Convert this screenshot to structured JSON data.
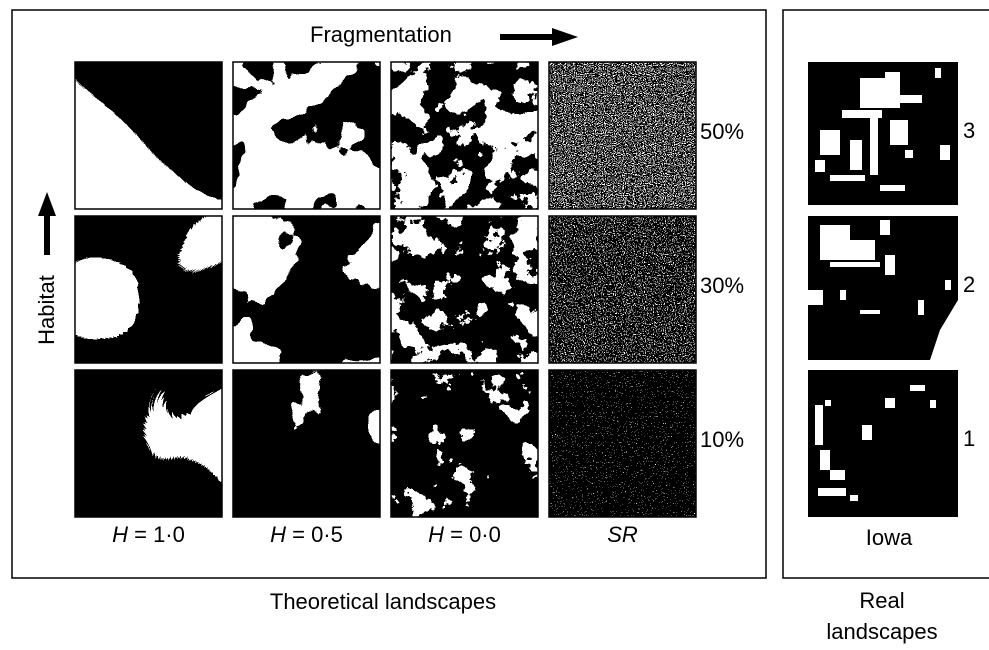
{
  "header": {
    "title": "Fragmentation"
  },
  "y_axis": "Habitat",
  "theoretical": {
    "rows": [
      "50%",
      "30%",
      "10%"
    ],
    "columns": [
      {
        "var": "H",
        "rest": " = 1·0"
      },
      {
        "var": "H",
        "rest": " = 0·5"
      },
      {
        "var": "H",
        "rest": " = 0·0"
      },
      {
        "var": "SR"
      }
    ],
    "footer": "Theoretical landscapes"
  },
  "real": {
    "rows": [
      "3",
      "2",
      "1"
    ],
    "label": "Iowa",
    "footer": [
      "Real",
      "landscapes"
    ]
  }
}
